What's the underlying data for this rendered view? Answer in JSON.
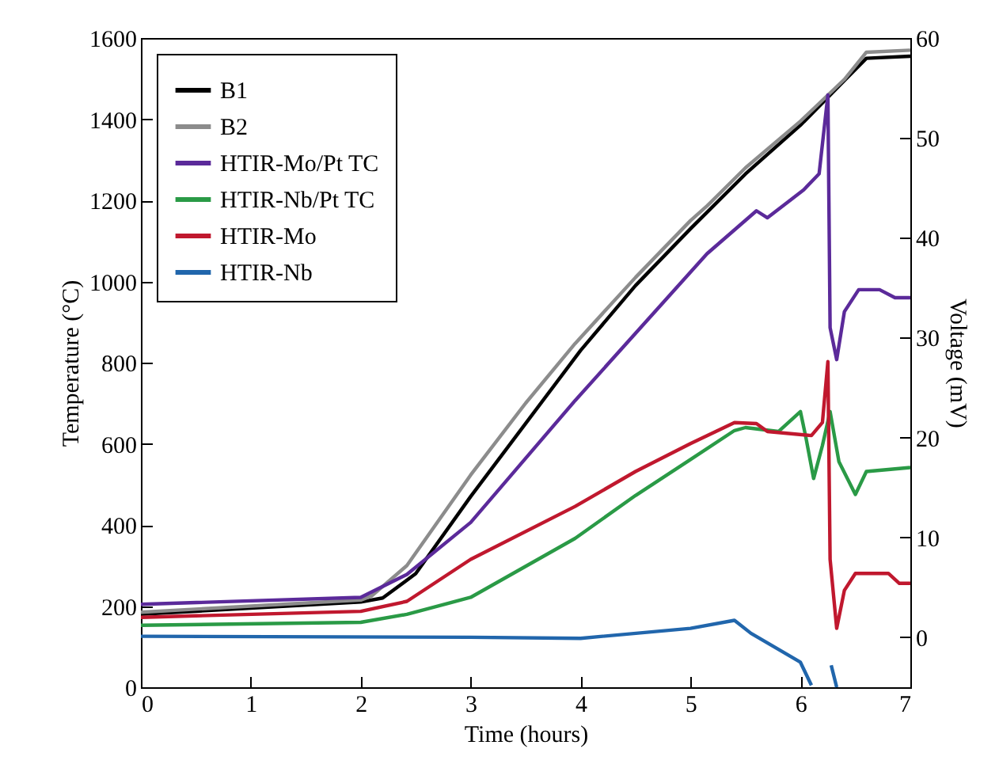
{
  "chart_data": {
    "type": "line",
    "xlabel": "Time (hours)",
    "ylabel": "Temperature (°C)",
    "y2label": "Voltage (mV)",
    "xlim": [
      0,
      7
    ],
    "xticks": [
      0,
      1,
      2,
      3,
      4,
      5,
      6,
      7
    ],
    "ylim": [
      0,
      1600
    ],
    "yticks": [
      0,
      200,
      400,
      600,
      800,
      1000,
      1200,
      1400,
      1600
    ],
    "y2lim": [
      -5,
      60
    ],
    "y2ticks": [
      0,
      10,
      20,
      30,
      40,
      50,
      60
    ],
    "legend": "top left",
    "grid": false,
    "series": [
      {
        "name": "B1",
        "color": "#000000",
        "x": [
          0,
          2,
          2.2,
          2.5,
          3,
          3.5,
          4,
          4.5,
          5,
          5.5,
          6,
          6.4,
          6.6,
          7
        ],
        "values": [
          180,
          210,
          220,
          280,
          470,
          650,
          830,
          990,
          1130,
          1265,
          1385,
          1495,
          1550,
          1555
        ]
      },
      {
        "name": "B2",
        "color": "#8c8c8c",
        "x": [
          0,
          2,
          2.1,
          2.42,
          3,
          3.5,
          3.95,
          4.5,
          5,
          5.15,
          5.5,
          6,
          6.4,
          6.6,
          7
        ],
        "values": [
          185,
          215,
          225,
          300,
          523,
          700,
          847,
          1010,
          1150,
          1186,
          1280,
          1395,
          1498,
          1565,
          1570
        ]
      },
      {
        "name": "HTIR-Mo/Pt TC",
        "color": "#5b2a9a",
        "axis": "y2",
        "x": [
          0,
          2,
          2.42,
          3,
          3.95,
          5.15,
          5.6,
          5.7,
          6.03,
          6.17,
          6.25,
          6.27,
          6.33,
          6.4,
          6.53,
          6.72,
          6.86,
          7
        ],
        "values": [
          3.3,
          4.0,
          6.3,
          11.5,
          23.7,
          38.4,
          42.7,
          42.0,
          44.8,
          46.4,
          54.3,
          31,
          27.8,
          32.6,
          34.8,
          34.8,
          34,
          34
        ]
      },
      {
        "name": "HTIR-Nb/Pt TC",
        "color": "#2a9a46",
        "axis": "y2",
        "x": [
          0,
          2,
          2.42,
          3,
          3.95,
          4.5,
          5,
          5.4,
          5.5,
          5.8,
          6,
          6.05,
          6.12,
          6.2,
          6.27,
          6.35,
          6.5,
          6.6,
          7
        ],
        "values": [
          1.2,
          1.5,
          2.3,
          4.0,
          9.9,
          14.2,
          17.8,
          20.7,
          21.0,
          20.6,
          22.6,
          20,
          15.9,
          19.2,
          22.6,
          17.6,
          14.3,
          16.6,
          17
        ]
      },
      {
        "name": "HTIR-Mo",
        "color": "#c0182e",
        "axis": "y2",
        "x": [
          0,
          2,
          2.42,
          3,
          3.95,
          4.5,
          5,
          5.4,
          5.6,
          5.7,
          6.1,
          6.2,
          6.25,
          6.27,
          6.33,
          6.4,
          6.5,
          6.8,
          6.9,
          7
        ],
        "values": [
          2.0,
          2.6,
          3.6,
          7.8,
          13.1,
          16.6,
          19.4,
          21.5,
          21.4,
          20.6,
          20.2,
          21.5,
          27.6,
          7.8,
          0.9,
          4.7,
          6.4,
          6.4,
          5.4,
          5.4
        ]
      },
      {
        "name": "HTIR-Nb",
        "color": "#2166ac",
        "axis": "y2",
        "x": [
          0,
          3,
          4,
          5,
          5.4,
          5.55,
          5.8,
          6.0,
          6.1,
          6.2,
          6.28,
          6.33
        ],
        "values": [
          0.1,
          0,
          -0.1,
          0.9,
          1.7,
          0.4,
          -1.2,
          -2.5,
          -4.8,
          null,
          -2.8,
          -5
        ]
      }
    ]
  }
}
